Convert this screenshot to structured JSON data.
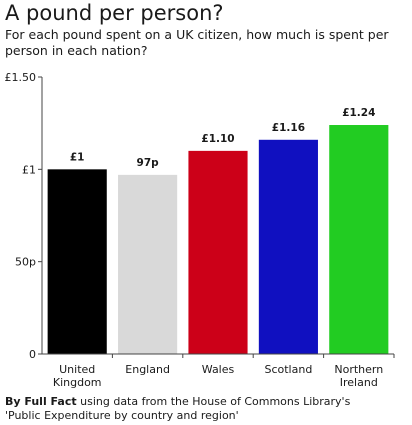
{
  "chart_data": {
    "type": "bar",
    "title": "A pound per person?",
    "subtitle": "For each pound spent on a UK citizen, how much is spent per person in each nation?",
    "categories": [
      [
        "United",
        "Kingdom"
      ],
      [
        "England"
      ],
      [
        "Wales"
      ],
      [
        "Scotland"
      ],
      [
        "Northern",
        "Ireland"
      ]
    ],
    "values": [
      1.0,
      0.97,
      1.1,
      1.16,
      1.24
    ],
    "value_labels": [
      "£1",
      "97p",
      "£1.10",
      "£1.16",
      "£1.24"
    ],
    "colors": [
      "#000000",
      "#d9d9d9",
      "#cc0018",
      "#1010c0",
      "#22cc22"
    ],
    "ylim": [
      0,
      1.5
    ],
    "yticks": [
      0,
      0.5,
      1,
      1.5
    ],
    "ytick_labels": [
      "0",
      "50p",
      "£1",
      "£1.50"
    ],
    "grid": false
  },
  "footer": {
    "bold": "By Full Fact",
    "rest": " using data from the House of Commons Library's",
    "line2": "'Public Expenditure by country and region'"
  }
}
